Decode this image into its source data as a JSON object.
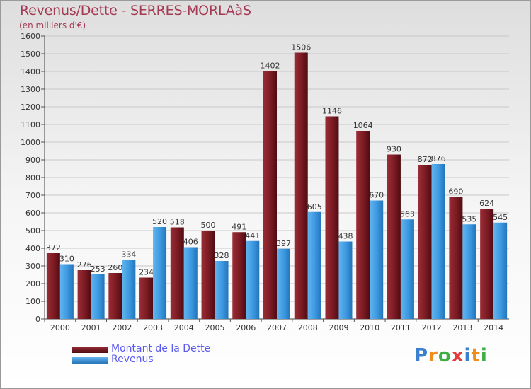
{
  "chart_data": {
    "type": "bar",
    "title": "Revenus/Dette - SERRES-MORLAàS",
    "subtitle": "(en milliers d'€)",
    "categories": [
      "2000",
      "2001",
      "2002",
      "2003",
      "2004",
      "2005",
      "2006",
      "2007",
      "2008",
      "2009",
      "2010",
      "2011",
      "2012",
      "2013",
      "2014"
    ],
    "series": [
      {
        "name": "Montant de la Dette",
        "color": "#7a1a22",
        "values": [
          372,
          276,
          260,
          234,
          518,
          500,
          491,
          1402,
          1506,
          1146,
          1064,
          930,
          872,
          690,
          624
        ]
      },
      {
        "name": "Revenus",
        "color": "#3b98e0",
        "values": [
          310,
          253,
          334,
          520,
          406,
          328,
          441,
          397,
          605,
          438,
          670,
          563,
          876,
          535,
          545
        ]
      }
    ],
    "ylim": [
      0,
      1600
    ],
    "yticks": [
      0,
      100,
      200,
      300,
      400,
      500,
      600,
      700,
      800,
      900,
      1000,
      1100,
      1200,
      1300,
      1400,
      1500,
      1600
    ],
    "xlabel": "",
    "ylabel": "",
    "legend_position": "bottom-left"
  },
  "brand": {
    "letters": [
      "P",
      "r",
      "o",
      "x",
      "i",
      "t",
      "i"
    ],
    "colors": [
      "#3b7fd0",
      "#f08c1a",
      "#3cb043",
      "#e23c3c",
      "#3b7fd0",
      "#f08c1a",
      "#3cb043"
    ]
  }
}
